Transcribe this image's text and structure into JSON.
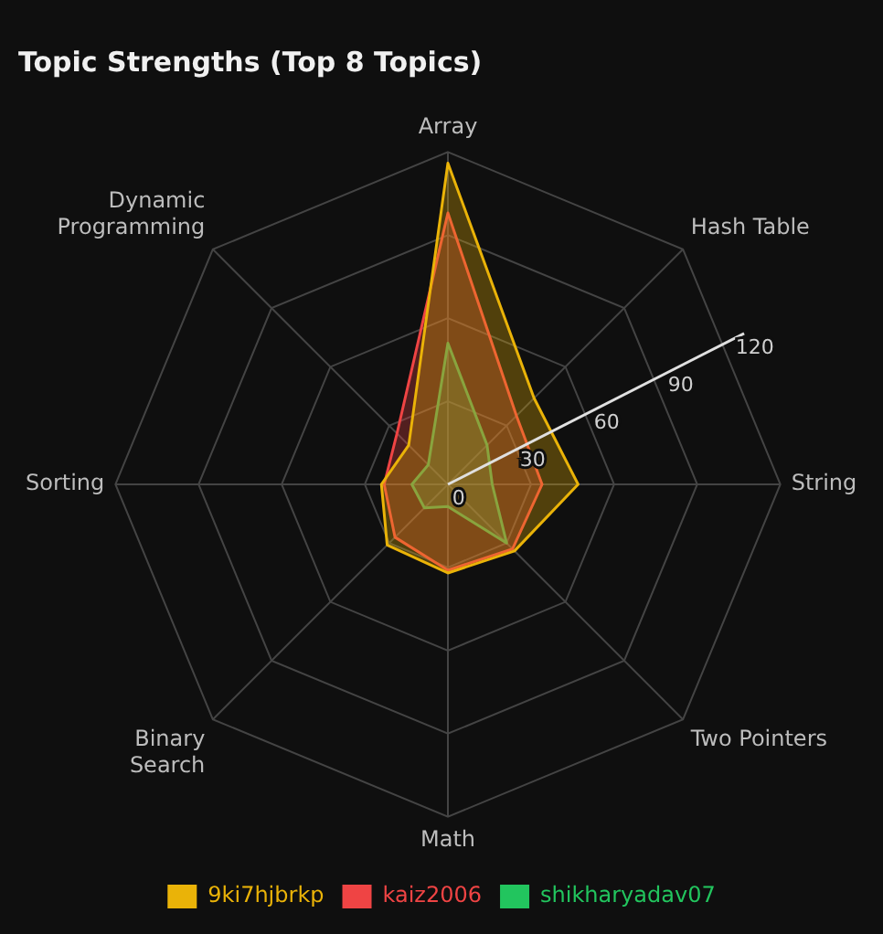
{
  "chart_data": {
    "type": "radar",
    "title": "Topic Strengths (Top 8 Topics)",
    "categories": [
      "Array",
      "Hash Table",
      "String",
      "Two Pointers",
      "Math",
      "Binary Search",
      "Sorting",
      "Dynamic Programming"
    ],
    "series": [
      {
        "name": "9ki7hjbrkp",
        "color": "#eab308",
        "values": [
          116,
          44,
          47,
          34,
          32,
          31,
          24,
          20
        ]
      },
      {
        "name": "kaiz2006",
        "color": "#ef4444",
        "values": [
          98,
          35,
          34,
          33,
          31,
          27,
          23,
          26
        ]
      },
      {
        "name": "shikharyadav07",
        "color": "#22c55e",
        "values": [
          51,
          20,
          16,
          30,
          8,
          12,
          13,
          10
        ]
      }
    ],
    "ylim": [
      0,
      120
    ],
    "yticks": [
      0,
      30,
      60,
      90,
      120
    ],
    "grid": true,
    "legend": "bottom",
    "marker": "none"
  }
}
